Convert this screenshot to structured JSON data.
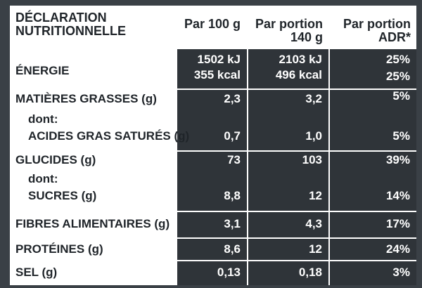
{
  "table": {
    "headers": {
      "label": "DÉCLARATION\nNUTRITIONNELLE",
      "per100": "Par 100 g",
      "perPortion": "Par portion\n140 g",
      "adr": "Par portion\nADR*"
    },
    "rows": {
      "energie": {
        "label": "ÉNERGIE",
        "per100_kj": "1502 kJ",
        "per100_kcal": "355 kcal",
        "portion_kj": "2103 kJ",
        "portion_kcal": "496 kcal",
        "adr_kj": "25%",
        "adr_kcal": "25%"
      },
      "matieres_grasses": {
        "label": "MATIÈRES GRASSES (g)",
        "per100": "2,3",
        "portion": "3,2",
        "adr": "5%",
        "sub_dont": "dont:",
        "sub_label": "ACIDES GRAS SATURÉS (g)",
        "sub_per100": "0,7",
        "sub_portion": "1,0",
        "sub_adr": "5%"
      },
      "glucides": {
        "label": "GLUCIDES (g)",
        "per100": "73",
        "portion": "103",
        "adr": "39%",
        "sub_dont": "dont:",
        "sub_label": "SUCRES (g)",
        "sub_per100": "8,8",
        "sub_portion": "12",
        "sub_adr": "14%"
      },
      "fibres": {
        "label": "FIBRES ALIMENTAIRES (g)",
        "per100": "3,1",
        "portion": "4,3",
        "adr": "17%"
      },
      "proteines": {
        "label": "PROTÉINES (g)",
        "per100": "8,6",
        "portion": "12",
        "adr": "24%"
      },
      "sel": {
        "label": "SEL (g)",
        "per100": "0,13",
        "portion": "0,18",
        "adr": "3%"
      }
    }
  },
  "colors": {
    "background": "#3a4046",
    "cell_dark": "#2f3439",
    "cell_light": "#ffffff",
    "text_dark": "#1f2429"
  }
}
